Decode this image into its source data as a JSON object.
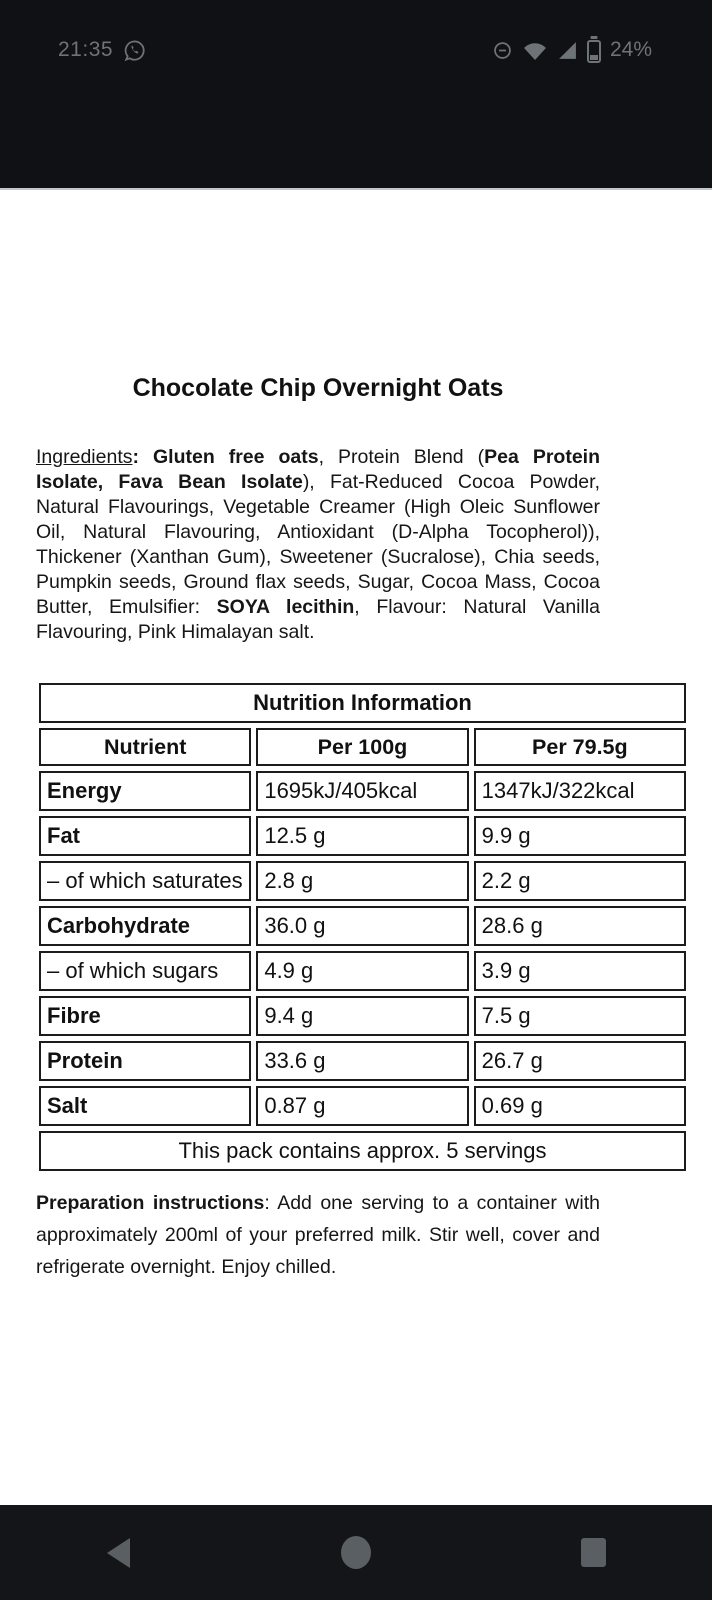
{
  "colors": {
    "header_bg": "#0f1114",
    "nav_bg": "#141518",
    "status_fg": "#6e7378",
    "nav_icon": "#5a5f64",
    "table_border": "#1c1c1c"
  },
  "status_bar": {
    "time": "21:35",
    "battery_percent": "24%",
    "icons": [
      "whatsapp-notification-icon",
      "do-not-disturb-icon",
      "wifi-icon",
      "cellular-signal-icon",
      "battery-icon"
    ]
  },
  "document": {
    "title": "Chocolate Chip Overnight Oats",
    "ingredients": {
      "segments": [
        {
          "t": "Ingredients",
          "u": true
        },
        {
          "t": ": ",
          "b": true
        },
        {
          "t": "Gluten free oats",
          "b": true
        },
        {
          "t": ", Protein Blend ("
        },
        {
          "t": "Pea Protein Isolate, Fava Bean Isolate",
          "b": true
        },
        {
          "t": "), Fat-Reduced Cocoa Powder, Natural Flavourings, Vegetable Creamer (High Oleic Sunflower Oil, Natural Flavouring, Antioxidant (D-Alpha Tocopherol)), Thickener (Xanthan Gum), Sweetener (Sucralose), Chia seeds, Pumpkin seeds, Ground flax seeds, Sugar, Cocoa Mass, Cocoa Butter, Emulsifier: "
        },
        {
          "t": "SOYA lecithin",
          "b": true
        },
        {
          "t": ", Flavour: Natural Vanilla Flavouring, Pink Himalayan salt."
        }
      ]
    },
    "preparation": {
      "segments": [
        {
          "t": "Preparation instructions",
          "b": true
        },
        {
          "t": ": Add one serving to a container with approximately 200ml of your preferred milk. Stir well, cover and refrigerate overnight. Enjoy chilled."
        }
      ]
    }
  },
  "table": {
    "title": "Nutrition Information",
    "columns": [
      "Nutrient",
      "Per 100g",
      "Per 79.5g"
    ],
    "rows": [
      {
        "name": "Energy",
        "bold": true,
        "per100": "1695kJ/405kcal",
        "serving": "1347kJ/322kcal"
      },
      {
        "name": "Fat",
        "bold": true,
        "per100": "12.5 g",
        "serving": "9.9 g"
      },
      {
        "name": "– of which saturates",
        "bold": false,
        "per100": "2.8 g",
        "serving": "2.2 g"
      },
      {
        "name": "Carbohydrate",
        "bold": true,
        "per100": "36.0 g",
        "serving": "28.6 g"
      },
      {
        "name": "– of which sugars",
        "bold": false,
        "per100": "4.9 g",
        "serving": "3.9 g"
      },
      {
        "name": "Fibre",
        "bold": true,
        "per100": "9.4 g",
        "serving": "7.5 g"
      },
      {
        "name": "Protein",
        "bold": true,
        "per100": "33.6 g",
        "serving": "26.7 g"
      },
      {
        "name": "Salt",
        "bold": true,
        "per100": "0.87 g",
        "serving": "0.69 g"
      }
    ],
    "footer": "This pack contains approx. 5 servings"
  },
  "nav_bar": {
    "buttons": [
      "back",
      "home",
      "recents"
    ]
  }
}
